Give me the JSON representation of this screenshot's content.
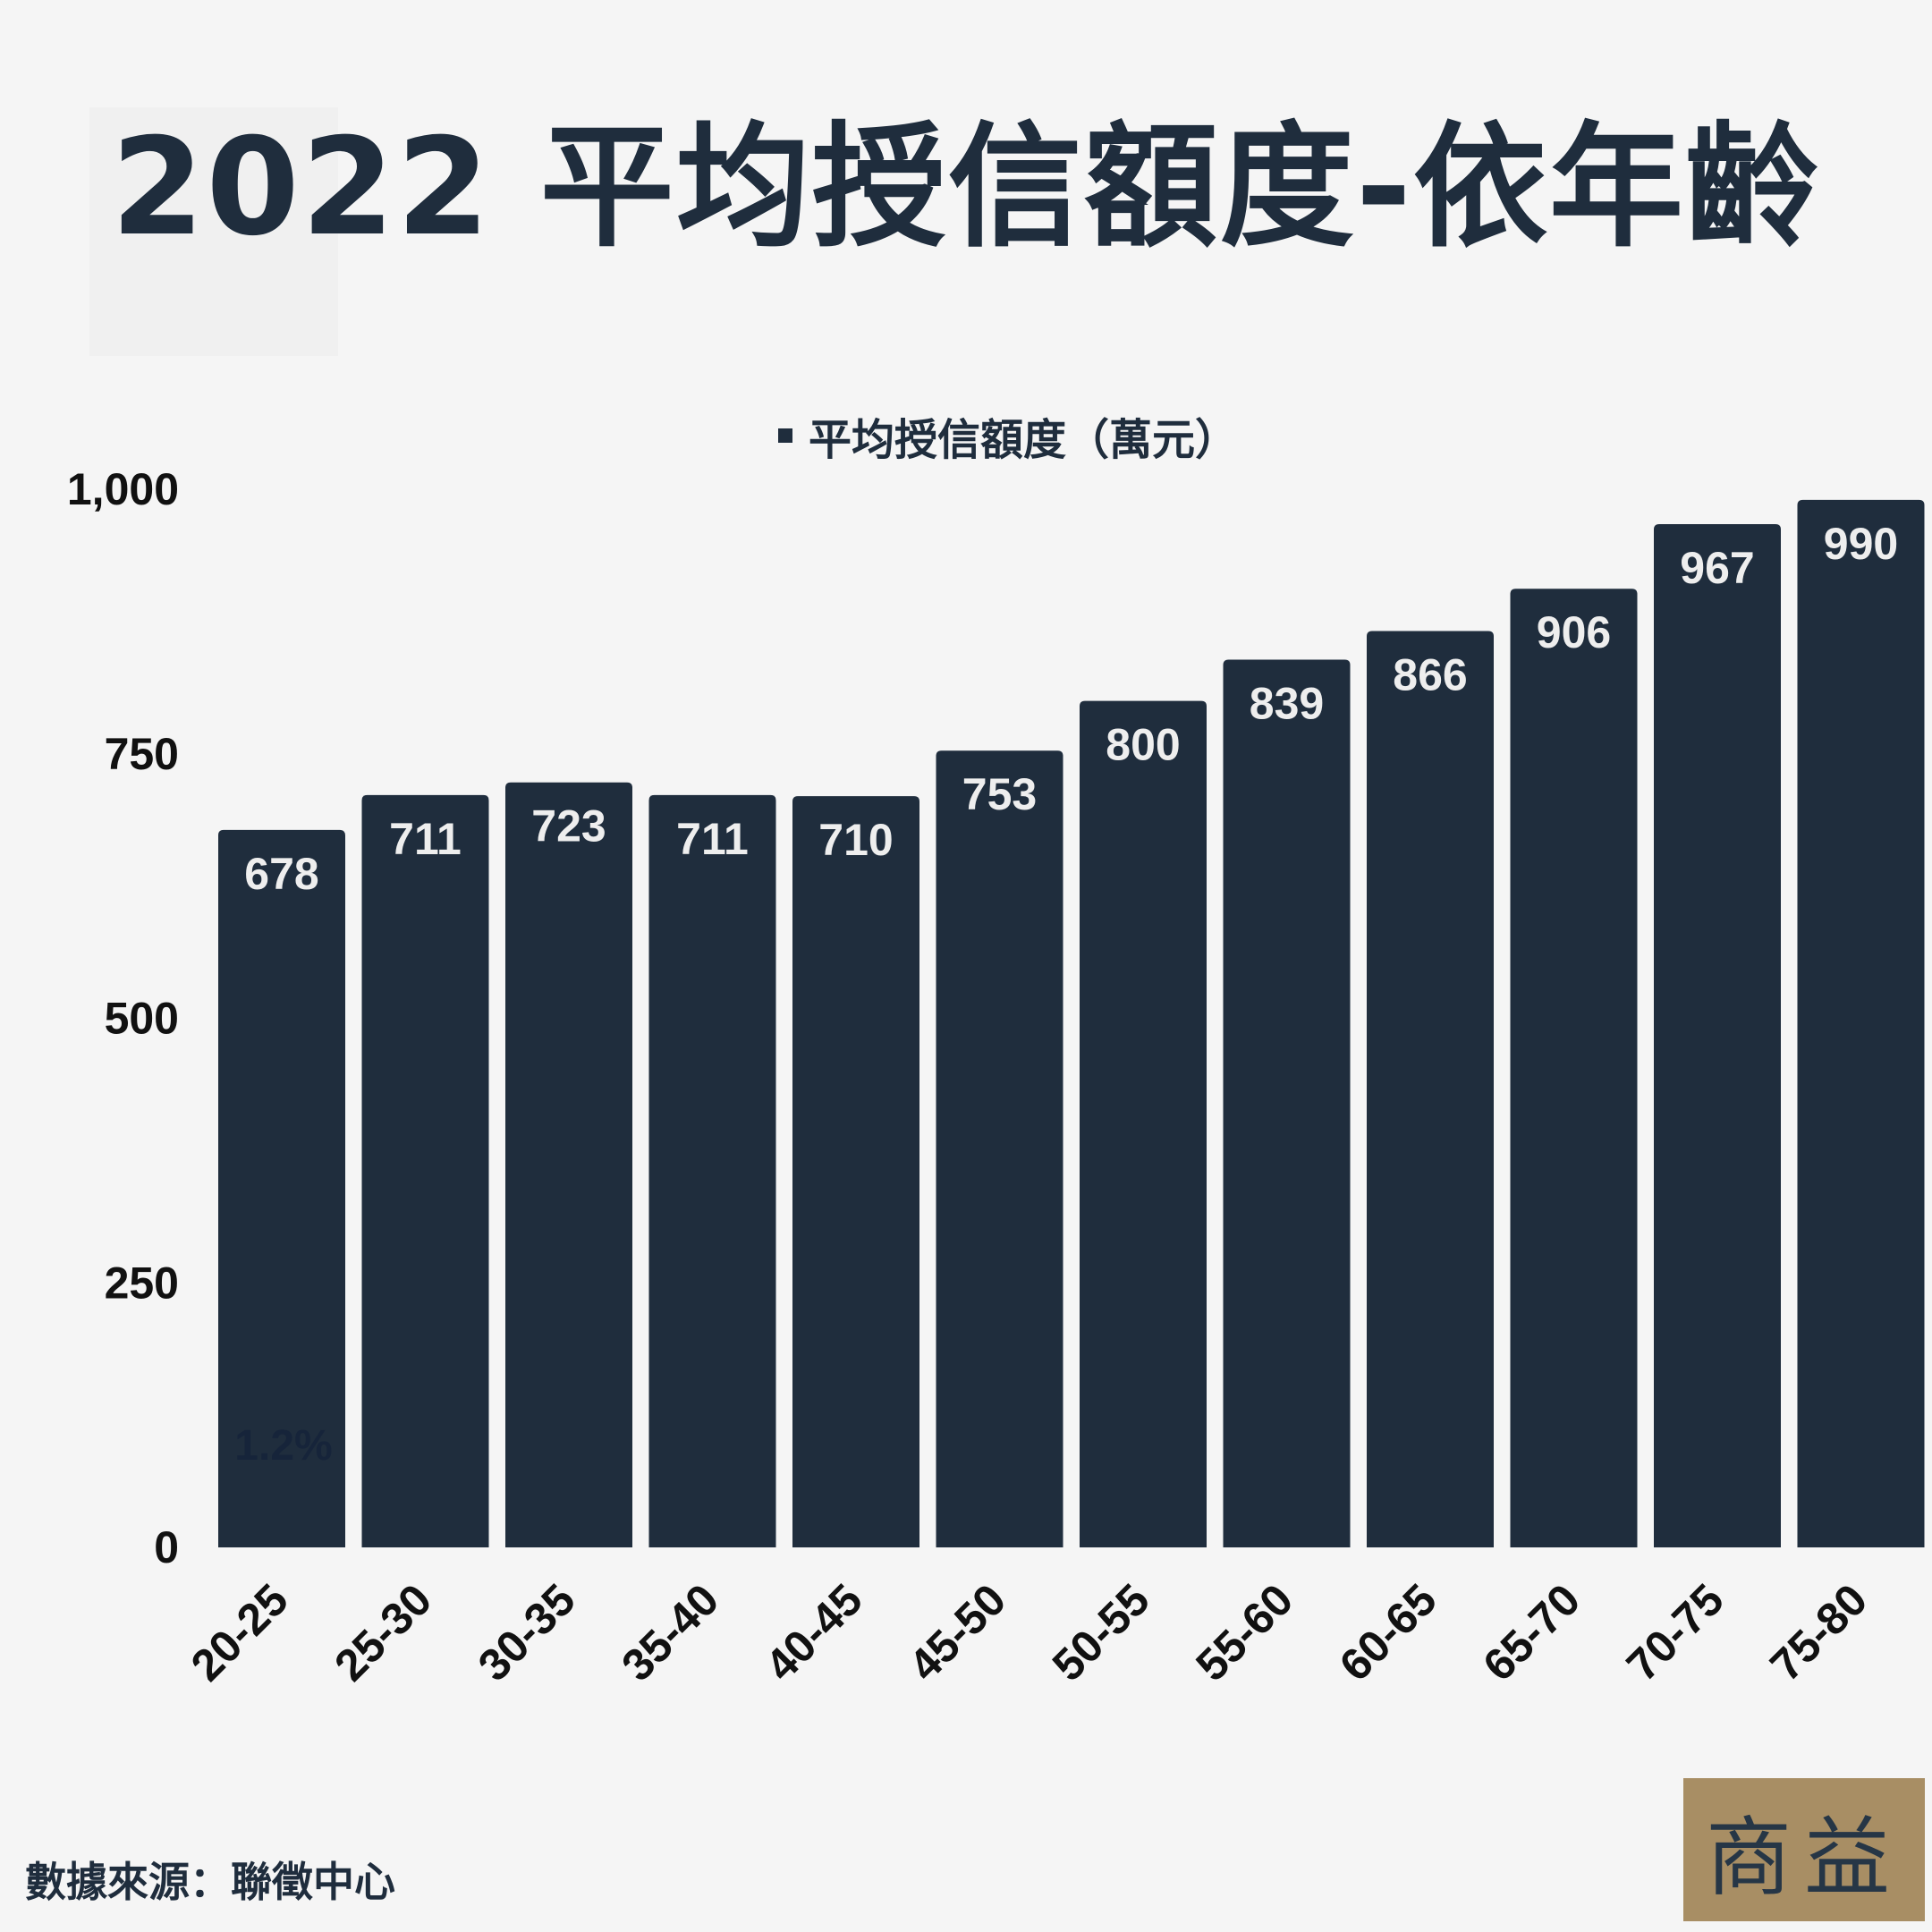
{
  "title": "2022 平均授信額度-依年齡",
  "legend": {
    "label": "平均授信額度（萬元）"
  },
  "source": "數據來源：聯徵中心",
  "logo": {
    "text": "商益"
  },
  "colors": {
    "background": "#f5f5f5",
    "bar": "#1f2d3d",
    "title": "#1f2d3d",
    "logo_background": "#a88e64"
  },
  "chart_data": {
    "type": "bar",
    "categories": [
      "20-25",
      "25-30",
      "30-35",
      "35-40",
      "40-45",
      "45-50",
      "50-55",
      "55-60",
      "60-65",
      "65-70",
      "70-75",
      "75-80"
    ],
    "series": [
      {
        "name": "平均授信額度（萬元）",
        "values": [
          678,
          711,
          723,
          711,
          710,
          753,
          800,
          839,
          866,
          906,
          967,
          990
        ]
      }
    ],
    "value_labels": [
      "678",
      "711",
      "723",
      "711",
      "710",
      "753",
      "800",
      "839",
      "866",
      "906",
      "967",
      "990"
    ],
    "ylim": [
      0,
      1000
    ],
    "yticks": [
      0,
      250,
      500,
      750,
      1000
    ],
    "ytick_labels": [
      "0",
      "250",
      "500",
      "750",
      "1,000"
    ],
    "annotations": [
      {
        "category": "20-25",
        "text": "1.2%"
      }
    ],
    "grid": false,
    "legend_position": "top-center",
    "xlabel": "",
    "ylabel": ""
  }
}
